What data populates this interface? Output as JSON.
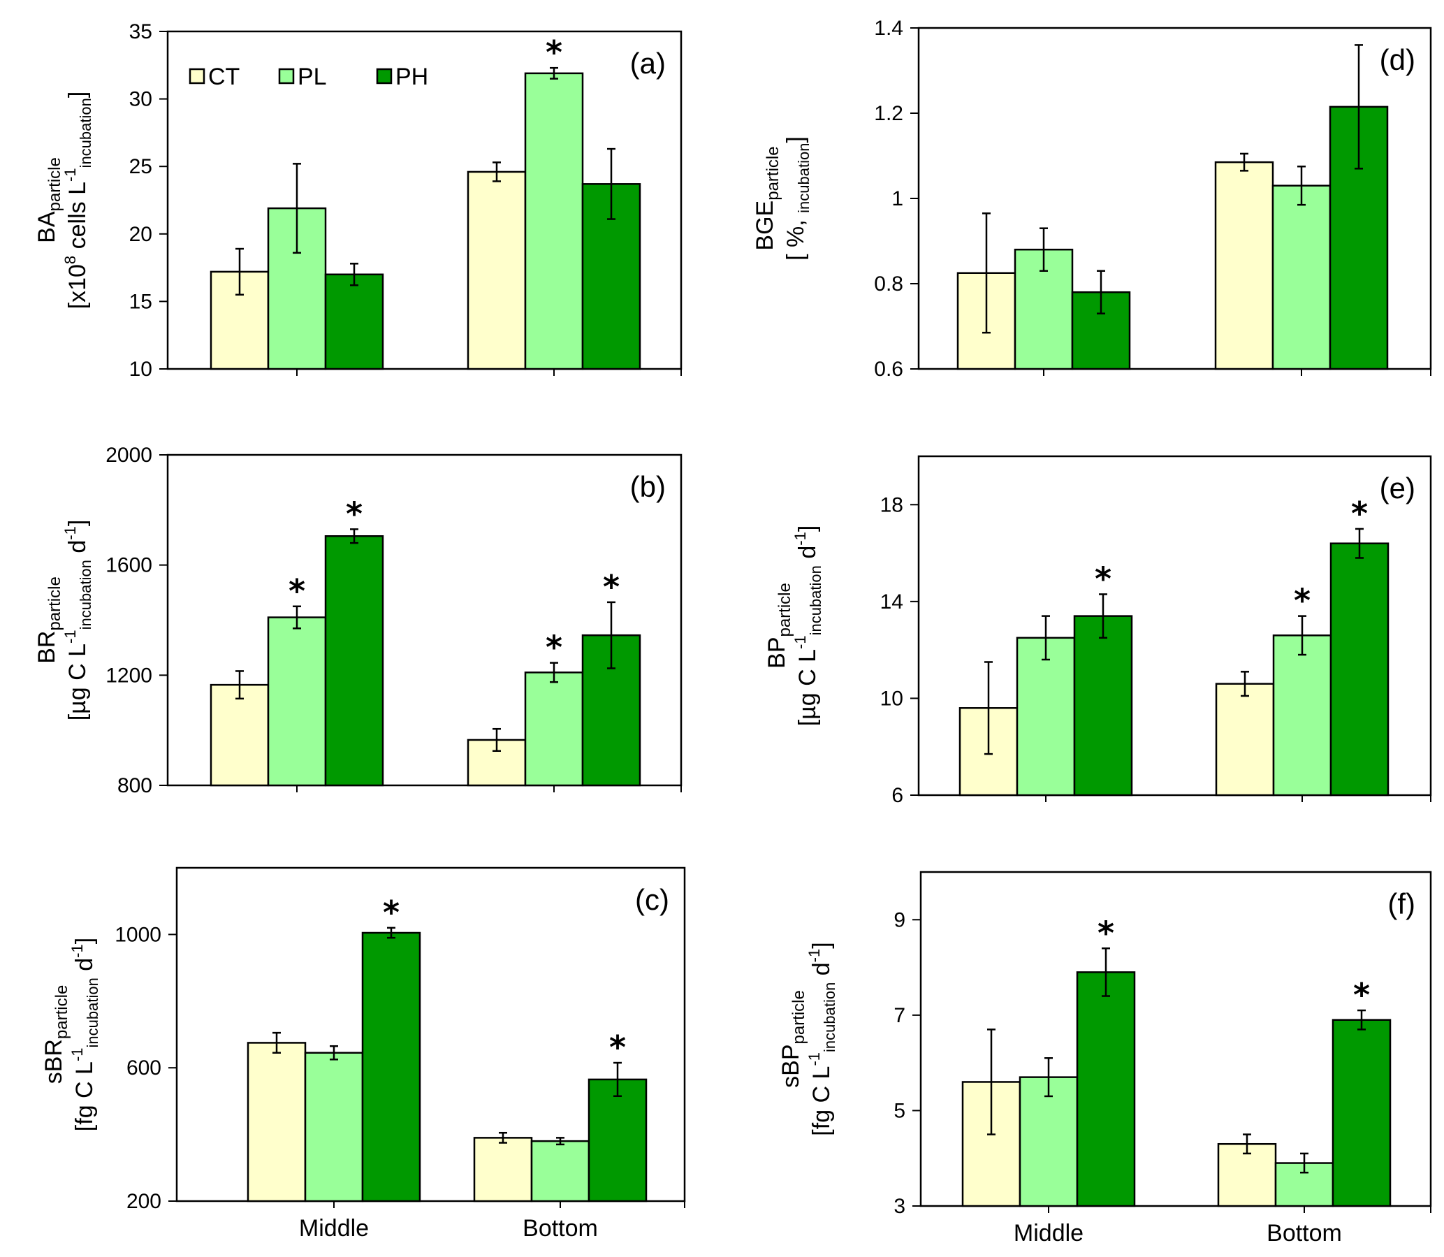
{
  "legend": [
    {
      "name": "CT",
      "color": "#ffffcc"
    },
    {
      "name": "PL",
      "color": "#99ff99"
    },
    {
      "name": "PH",
      "color": "#009900"
    }
  ],
  "chart_data": [
    {
      "id": "a",
      "type": "bar",
      "panel_label": "(a)",
      "ylabel_main": "BA",
      "ylabel_sub": "particle",
      "ylabel_unit": "[x10",
      "ylabel_unit_sup": "8",
      "ylabel_unit_rest": " cells L",
      "ylabel_unit_sup2": "-1",
      "ylabel_unit_sub2": "incubation",
      "ylabel_unit_end": "]",
      "ylim": [
        10,
        35
      ],
      "yticks": [
        10,
        15,
        20,
        25,
        30,
        35
      ],
      "categories": [
        "Middle",
        "Bottom"
      ],
      "show_xlabels": false,
      "show_legend": true,
      "series": [
        {
          "name": "CT",
          "values": [
            17.2,
            24.6
          ],
          "errors": [
            1.7,
            0.7
          ],
          "sig": [
            false,
            false
          ]
        },
        {
          "name": "PL",
          "values": [
            21.9,
            31.9
          ],
          "errors": [
            3.3,
            0.4
          ],
          "sig": [
            false,
            true
          ]
        },
        {
          "name": "PH",
          "values": [
            17.0,
            23.7
          ],
          "errors": [
            0.8,
            2.6
          ],
          "sig": [
            false,
            false
          ]
        }
      ]
    },
    {
      "id": "b",
      "type": "bar",
      "panel_label": "(b)",
      "ylabel_main": "BR",
      "ylabel_sub": "particle",
      "ylabel_unit": "[µg C L",
      "ylabel_unit_sup": "-1",
      "ylabel_unit_rest": "",
      "ylabel_unit_sup2": "",
      "ylabel_unit_sub2": "incubation",
      "ylabel_unit_end": " d",
      "ylabel_unit_sup3": "-1",
      "ylabel_unit_close": "]",
      "ylim": [
        800,
        2000
      ],
      "yticks": [
        800,
        1200,
        1600,
        2000
      ],
      "categories": [
        "Middle",
        "Bottom"
      ],
      "show_xlabels": false,
      "show_legend": false,
      "series": [
        {
          "name": "CT",
          "values": [
            1165,
            965
          ],
          "errors": [
            50,
            40
          ],
          "sig": [
            false,
            false
          ]
        },
        {
          "name": "PL",
          "values": [
            1410,
            1210
          ],
          "errors": [
            40,
            35
          ],
          "sig": [
            true,
            true
          ]
        },
        {
          "name": "PH",
          "values": [
            1705,
            1345
          ],
          "errors": [
            25,
            120
          ],
          "sig": [
            true,
            true
          ]
        }
      ]
    },
    {
      "id": "c",
      "type": "bar",
      "panel_label": "(c)",
      "ylabel_main": "sBR",
      "ylabel_sub": "particle",
      "ylabel_unit": "[fg C L",
      "ylabel_unit_sup": "-1",
      "ylabel_unit_rest": "",
      "ylabel_unit_sup2": "",
      "ylabel_unit_sub2": "incubation",
      "ylabel_unit_end": " d",
      "ylabel_unit_sup3": "-1",
      "ylabel_unit_close": "]",
      "ylim": [
        200,
        1200
      ],
      "yticks": [
        200,
        600,
        1000
      ],
      "categories": [
        "Middle",
        "Bottom"
      ],
      "show_xlabels": true,
      "show_legend": false,
      "series": [
        {
          "name": "CT",
          "values": [
            675,
            390
          ],
          "errors": [
            30,
            15
          ],
          "sig": [
            false,
            false
          ]
        },
        {
          "name": "PL",
          "values": [
            645,
            380
          ],
          "errors": [
            20,
            10
          ],
          "sig": [
            false,
            false
          ]
        },
        {
          "name": "PH",
          "values": [
            1005,
            565
          ],
          "errors": [
            15,
            50
          ],
          "sig": [
            true,
            true
          ]
        }
      ]
    },
    {
      "id": "d",
      "type": "bar",
      "panel_label": "(d)",
      "ylabel_main": "BGE",
      "ylabel_sub": "particle",
      "ylabel_unit": "[ %, ",
      "ylabel_unit_sup": "",
      "ylabel_unit_rest": "",
      "ylabel_unit_sup2": "",
      "ylabel_unit_sub2": "incubation",
      "ylabel_unit_end": "]",
      "ylim": [
        0.6,
        1.4
      ],
      "yticks": [
        0.6,
        0.8,
        1.0,
        1.2,
        1.4
      ],
      "ytick_labels": [
        "0.6",
        "0.8",
        "1",
        "1.2",
        "1.4"
      ],
      "categories": [
        "Middle",
        "Bottom"
      ],
      "show_xlabels": false,
      "show_legend": false,
      "series": [
        {
          "name": "CT",
          "values": [
            0.825,
            1.085
          ],
          "errors": [
            0.14,
            0.02
          ],
          "sig": [
            false,
            false
          ]
        },
        {
          "name": "PL",
          "values": [
            0.88,
            1.03
          ],
          "errors": [
            0.05,
            0.045
          ],
          "sig": [
            false,
            false
          ]
        },
        {
          "name": "PH",
          "values": [
            0.78,
            1.215
          ],
          "errors": [
            0.05,
            0.145
          ],
          "sig": [
            false,
            false
          ]
        }
      ]
    },
    {
      "id": "e",
      "type": "bar",
      "panel_label": "(e)",
      "ylabel_main": "BP",
      "ylabel_sub": "particle",
      "ylabel_unit": "[µg C L",
      "ylabel_unit_sup": "-1",
      "ylabel_unit_rest": "",
      "ylabel_unit_sup2": "",
      "ylabel_unit_sub2": "incubation",
      "ylabel_unit_end": " d",
      "ylabel_unit_sup3": "-1",
      "ylabel_unit_close": "]",
      "ylim": [
        6,
        20
      ],
      "yticks": [
        6,
        10,
        14,
        18
      ],
      "categories": [
        "Middle",
        "Bottom"
      ],
      "show_xlabels": false,
      "show_legend": false,
      "series": [
        {
          "name": "CT",
          "values": [
            9.6,
            10.6
          ],
          "errors": [
            1.9,
            0.5
          ],
          "sig": [
            false,
            false
          ]
        },
        {
          "name": "PL",
          "values": [
            12.5,
            12.6
          ],
          "errors": [
            0.9,
            0.8
          ],
          "sig": [
            false,
            true
          ]
        },
        {
          "name": "PH",
          "values": [
            13.4,
            16.4
          ],
          "errors": [
            0.9,
            0.6
          ],
          "sig": [
            true,
            true
          ]
        }
      ]
    },
    {
      "id": "f",
      "type": "bar",
      "panel_label": "(f)",
      "ylabel_main": "sBP",
      "ylabel_sub": "particle",
      "ylabel_unit": "[fg C L",
      "ylabel_unit_sup": "-1",
      "ylabel_unit_rest": "",
      "ylabel_unit_sup2": "",
      "ylabel_unit_sub2": "incubation",
      "ylabel_unit_end": " d",
      "ylabel_unit_sup3": "-1",
      "ylabel_unit_close": "]",
      "ylim": [
        3,
        10
      ],
      "yticks": [
        3,
        5,
        7,
        9
      ],
      "categories": [
        "Middle",
        "Bottom"
      ],
      "show_xlabels": true,
      "show_legend": false,
      "series": [
        {
          "name": "CT",
          "values": [
            5.6,
            4.3
          ],
          "errors": [
            1.1,
            0.2
          ],
          "sig": [
            false,
            false
          ]
        },
        {
          "name": "PL",
          "values": [
            5.7,
            3.9
          ],
          "errors": [
            0.4,
            0.2
          ],
          "sig": [
            false,
            false
          ]
        },
        {
          "name": "PH",
          "values": [
            7.9,
            6.9
          ],
          "errors": [
            0.5,
            0.2
          ],
          "sig": [
            true,
            true
          ]
        }
      ]
    }
  ]
}
